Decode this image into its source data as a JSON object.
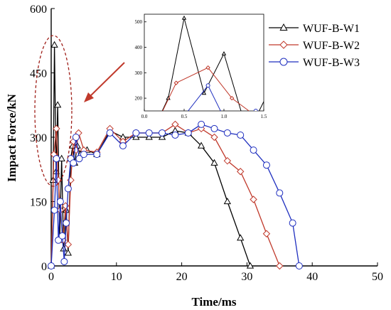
{
  "chart_data": [
    {
      "type": "line",
      "xlabel": "Time/ms",
      "ylabel": "Impact Force/kN",
      "xlim": [
        0,
        50
      ],
      "ylim": [
        0,
        600
      ],
      "xticks": [
        0,
        10,
        20,
        30,
        40,
        50
      ],
      "yticks": [
        0,
        150,
        300,
        450,
        600
      ],
      "grid": false,
      "legend": "top-right",
      "series": [
        {
          "name": "WUF-B-W1",
          "color": "#000000",
          "marker": "triangle",
          "x": [
            0,
            0.3,
            0.5,
            0.75,
            1.0,
            1.3,
            1.6,
            1.9,
            2.3,
            2.6,
            3.0,
            3.3,
            3.6,
            4.0,
            4.5,
            5.5,
            7.0,
            9.0,
            11.0,
            13.0,
            15.0,
            17.0,
            19.0,
            21.0,
            23.0,
            25.0,
            27.0,
            29.0,
            30.5
          ],
          "y": [
            0,
            200,
            515,
            220,
            375,
            60,
            250,
            40,
            130,
            30,
            250,
            280,
            240,
            280,
            260,
            270,
            260,
            315,
            300,
            300,
            300,
            300,
            315,
            310,
            280,
            240,
            150,
            65,
            0
          ]
        },
        {
          "name": "WUF-B-W2",
          "color": "#c0392b",
          "marker": "diamond",
          "x": [
            0,
            0.4,
            0.8,
            1.1,
            1.4,
            1.8,
            2.2,
            2.6,
            3.0,
            3.4,
            3.8,
            4.2,
            5.0,
            7.0,
            9.0,
            11.0,
            13.0,
            15.0,
            17.0,
            19.0,
            21.0,
            23.0,
            25.0,
            27.0,
            29.0,
            31.0,
            33.0,
            35.0
          ],
          "y": [
            0,
            260,
            320,
            200,
            130,
            60,
            140,
            50,
            200,
            290,
            270,
            310,
            270,
            265,
            320,
            290,
            310,
            310,
            310,
            330,
            310,
            320,
            300,
            245,
            220,
            155,
            75,
            0
          ]
        },
        {
          "name": "WUF-B-W3",
          "color": "#1f2fbf",
          "marker": "circle",
          "x": [
            0,
            0.5,
            0.8,
            1.1,
            1.4,
            1.7,
            2.0,
            2.3,
            2.6,
            3.0,
            3.4,
            3.8,
            4.3,
            5.0,
            7.0,
            9.0,
            11.0,
            13.0,
            15.0,
            17.0,
            19.0,
            21.0,
            23.0,
            25.0,
            27.0,
            29.0,
            31.0,
            33.0,
            35.0,
            37.0,
            38.0
          ],
          "y": [
            0,
            130,
            250,
            60,
            150,
            70,
            10,
            100,
            180,
            250,
            240,
            300,
            250,
            260,
            260,
            310,
            280,
            310,
            310,
            310,
            305,
            310,
            330,
            320,
            310,
            305,
            270,
            235,
            170,
            100,
            0
          ]
        }
      ]
    },
    {
      "type": "line",
      "role": "inset",
      "xlim": [
        0,
        1.5
      ],
      "ylim": [
        150,
        530
      ],
      "xticks": [
        "0.0",
        "0.5",
        "1.0",
        "1.5"
      ],
      "yticks": [
        200,
        300,
        400,
        500
      ],
      "grid": false
    }
  ]
}
